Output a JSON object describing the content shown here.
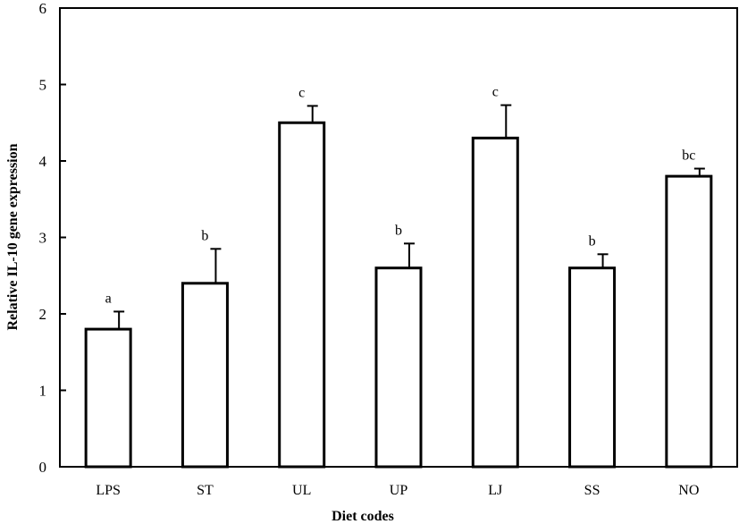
{
  "chart_data": {
    "type": "bar",
    "title": "",
    "xlabel": "Diet codes",
    "ylabel": "Relative IL-10 gene expression",
    "ylim": [
      0,
      6
    ],
    "yticks": [
      0,
      1,
      2,
      3,
      4,
      5,
      6
    ],
    "categories": [
      "LPS",
      "ST",
      "UL",
      "UP",
      "LJ",
      "SS",
      "NO"
    ],
    "values": [
      1.8,
      2.4,
      4.5,
      2.6,
      4.3,
      2.6,
      3.8
    ],
    "error_upper": [
      0.23,
      0.45,
      0.22,
      0.32,
      0.43,
      0.18,
      0.1
    ],
    "significance_letters": [
      "a",
      "b",
      "c",
      "b",
      "c",
      "b",
      "bc"
    ],
    "grid": false,
    "legend": "none",
    "bar_fill": "#ffffff",
    "bar_stroke": "#000000"
  }
}
